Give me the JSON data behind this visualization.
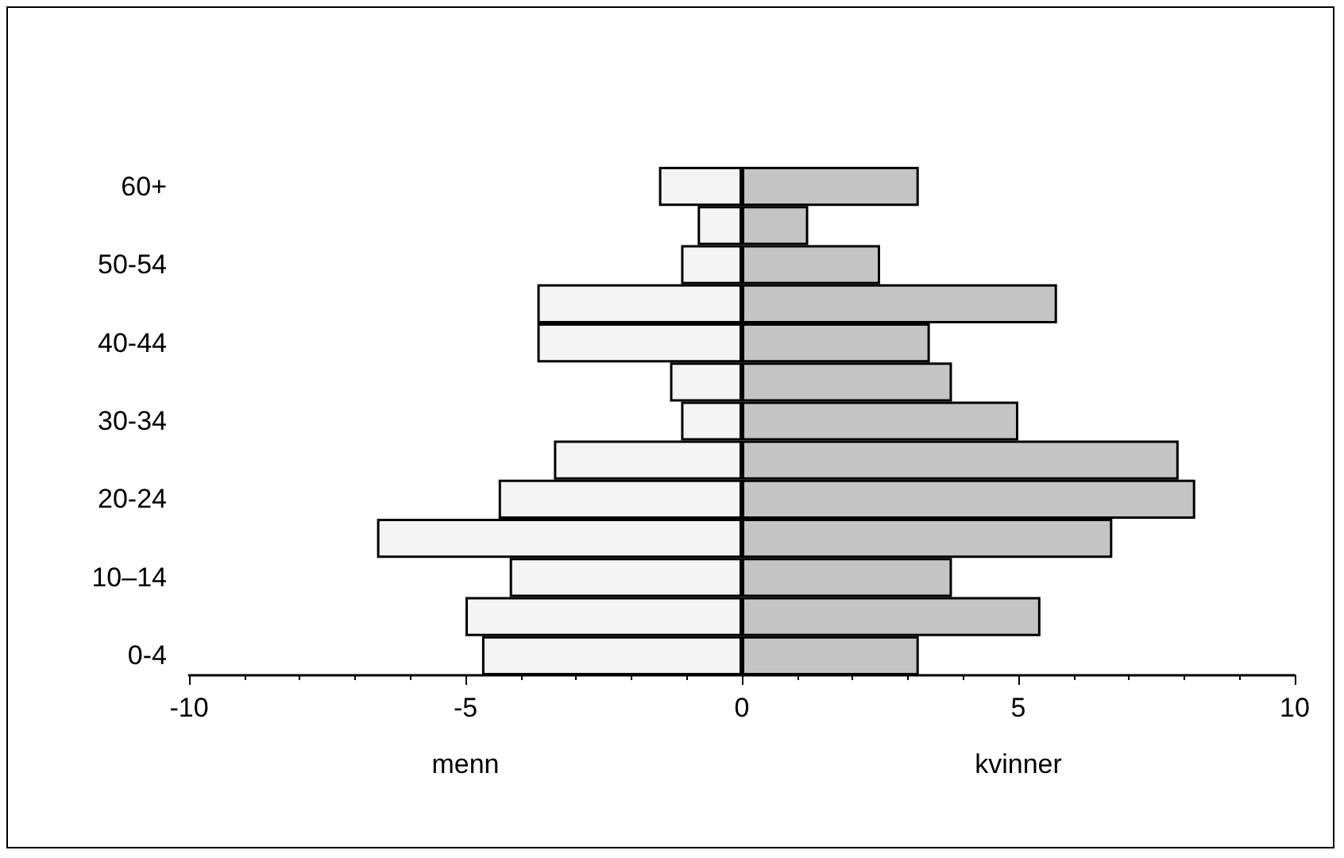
{
  "chart_data": {
    "type": "bar",
    "orientation": "horizontal",
    "stacked": true,
    "categories": [
      "60+",
      null,
      "50-54",
      null,
      "40-44",
      null,
      "30-34",
      null,
      "20-24",
      null,
      "10–14",
      null,
      "0-4"
    ],
    "series": [
      {
        "color": "#f4f4f4",
        "values": [
          -1.5,
          -0.8,
          -1.1,
          -3.7,
          -3.7,
          -1.3,
          -1.1,
          -3.4,
          -4.4,
          -6.6,
          -4.2,
          -5.0,
          -4.7
        ]
      },
      {
        "color": "#c4c4c4",
        "values": [
          3.2,
          1.2,
          2.5,
          5.7,
          3.4,
          3.8,
          5.0,
          7.9,
          8.2,
          6.7,
          3.8,
          5.4,
          3.2
        ]
      }
    ],
    "annotations": [
      "menn",
      "kvinner"
    ],
    "xlim": [
      -10,
      10
    ],
    "xticks": [
      -10,
      -5,
      0,
      5,
      10
    ],
    "grid": false
  }
}
